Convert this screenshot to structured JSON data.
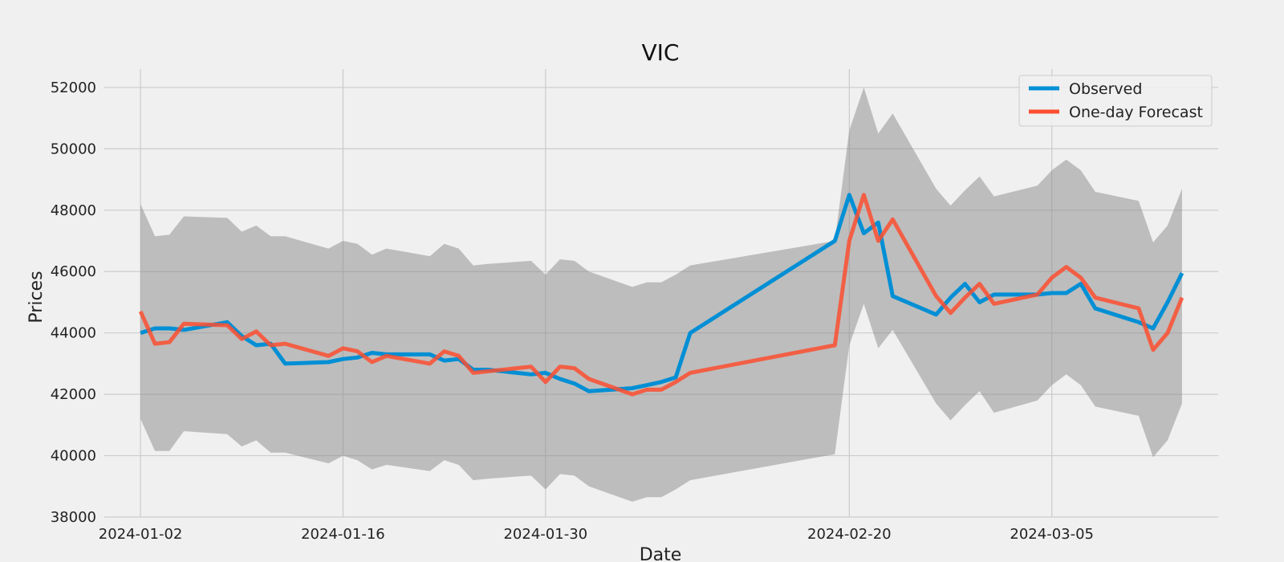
{
  "chart_data": {
    "type": "line",
    "title": "VIC",
    "xlabel": "Date",
    "ylabel": "Prices",
    "grid": true,
    "legend_position": "top-right",
    "ylim": [
      38000,
      52600
    ],
    "y_ticks": [
      38000,
      40000,
      42000,
      44000,
      46000,
      48000,
      50000,
      52000
    ],
    "x_ticks": [
      "2024-01-02",
      "2024-01-16",
      "2024-01-30",
      "2024-02-20",
      "2024-03-05"
    ],
    "x": [
      "2024-01-02",
      "2024-01-03",
      "2024-01-04",
      "2024-01-05",
      "2024-01-08",
      "2024-01-09",
      "2024-01-10",
      "2024-01-11",
      "2024-01-12",
      "2024-01-15",
      "2024-01-16",
      "2024-01-17",
      "2024-01-18",
      "2024-01-19",
      "2024-01-22",
      "2024-01-23",
      "2024-01-24",
      "2024-01-25",
      "2024-01-26",
      "2024-01-29",
      "2024-01-30",
      "2024-01-31",
      "2024-02-01",
      "2024-02-02",
      "2024-02-05",
      "2024-02-06",
      "2024-02-07",
      "2024-02-08",
      "2024-02-09",
      "2024-02-19",
      "2024-02-20",
      "2024-02-21",
      "2024-02-22",
      "2024-02-23",
      "2024-02-26",
      "2024-02-27",
      "2024-02-28",
      "2024-02-29",
      "2024-03-01",
      "2024-03-04",
      "2024-03-05",
      "2024-03-06",
      "2024-03-07",
      "2024-03-08",
      "2024-03-11",
      "2024-03-12",
      "2024-03-13",
      "2024-03-14"
    ],
    "colors": {
      "observed": "#008fd5",
      "forecast": "#fc4f30",
      "band": "#8a8a8a"
    },
    "series": [
      {
        "name": "Observed",
        "values": [
          44000,
          44150,
          44150,
          44100,
          44350,
          43900,
          43600,
          43650,
          43000,
          43050,
          43150,
          43200,
          43350,
          43300,
          43300,
          43100,
          43150,
          42800,
          42800,
          42650,
          42700,
          42500,
          42350,
          42100,
          42200,
          42300,
          42400,
          42550,
          44000,
          47000,
          48500,
          47250,
          47600,
          45200,
          44600,
          45150,
          45600,
          45000,
          45250,
          45250,
          45300,
          45300,
          45600,
          44800,
          44350,
          44150,
          45000,
          45950
        ]
      },
      {
        "name": "One-day Forecast",
        "values": [
          44700,
          43650,
          43700,
          44300,
          44250,
          43800,
          44050,
          43600,
          43650,
          43250,
          43500,
          43400,
          43050,
          43250,
          43000,
          43400,
          43250,
          42700,
          42750,
          42900,
          42400,
          42900,
          42850,
          42500,
          42000,
          42150,
          42150,
          42400,
          42700,
          43600,
          47000,
          48500,
          47000,
          47700,
          45200,
          44650,
          45150,
          45600,
          44950,
          45250,
          45800,
          46150,
          45800,
          45150,
          44800,
          43450,
          44000,
          45150
        ]
      }
    ],
    "interval": {
      "upper": [
        48200,
        47150,
        47200,
        47800,
        47750,
        47300,
        47500,
        47150,
        47150,
        46750,
        47000,
        46900,
        46550,
        46750,
        46500,
        46900,
        46750,
        46200,
        46250,
        46350,
        45900,
        46400,
        46350,
        46000,
        45500,
        45650,
        45650,
        45900,
        46200,
        47000,
        50600,
        52000,
        50500,
        51150,
        48700,
        48150,
        48650,
        49100,
        48450,
        48800,
        49300,
        49650,
        49300,
        48600,
        48300,
        46950,
        47500,
        48700
      ],
      "lower": [
        41200,
        40150,
        40150,
        40800,
        40700,
        40300,
        40500,
        40100,
        40100,
        39750,
        40000,
        39850,
        39550,
        39700,
        39500,
        39850,
        39700,
        39200,
        39250,
        39350,
        38900,
        39400,
        39350,
        39000,
        38500,
        38650,
        38650,
        38900,
        39200,
        40050,
        43600,
        44950,
        43500,
        44100,
        41700,
        41150,
        41650,
        42100,
        41400,
        41800,
        42300,
        42650,
        42300,
        41600,
        41300,
        39950,
        40500,
        41700
      ]
    },
    "legend": [
      "Observed",
      "One-day Forecast"
    ]
  }
}
